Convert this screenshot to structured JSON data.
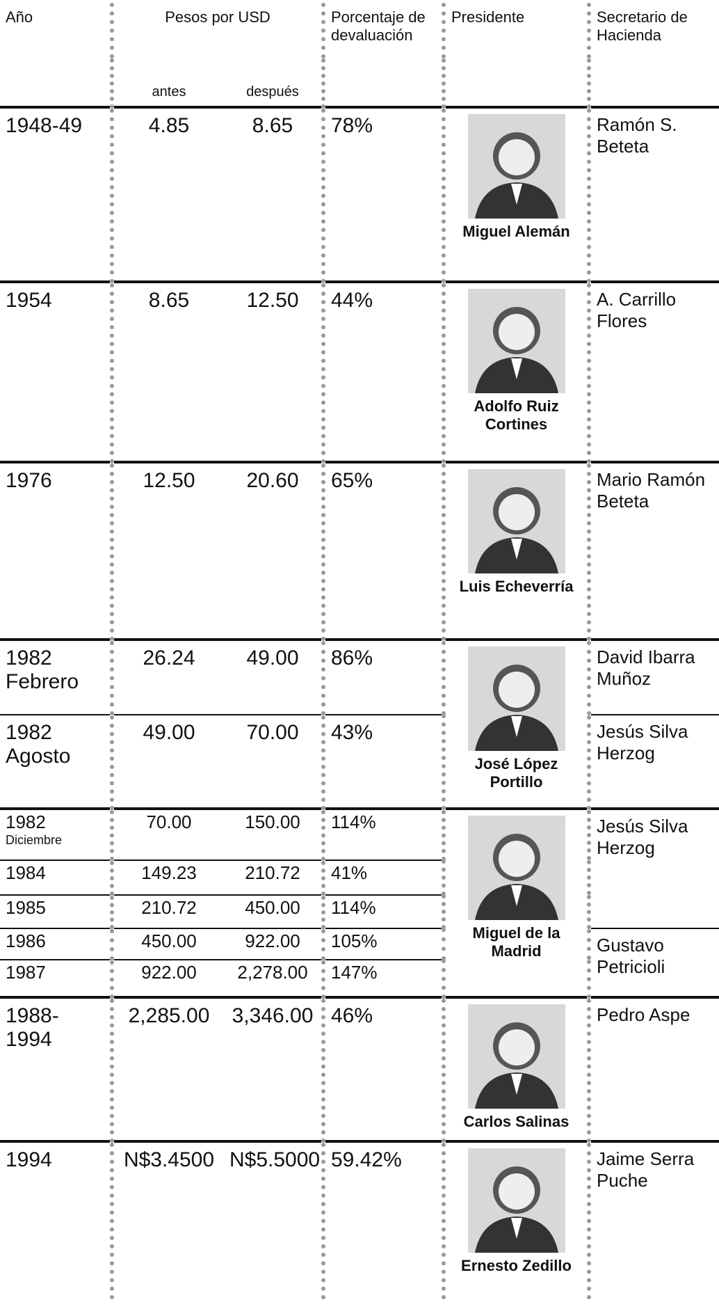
{
  "header": {
    "year": "Año",
    "pesos": "Pesos por USD",
    "before": "antes",
    "after": "después",
    "pct": "Porcentaje de devaluación",
    "president": "Presidente",
    "secretary": "Secretario de Hacienda"
  },
  "table": {
    "groups": [
      {
        "president": "Miguel Alemán",
        "secretaries": [
          {
            "name": "Ramón S. Beteta",
            "rows": [
              {
                "year": "1948-49",
                "before": "4.85",
                "after": "8.65",
                "pct": "78%"
              }
            ]
          }
        ]
      },
      {
        "president": "Adolfo Ruiz Cortines",
        "secretaries": [
          {
            "name": "A. Carrillo Flores",
            "rows": [
              {
                "year": "1954",
                "before": "8.65",
                "after": "12.50",
                "pct": "44%"
              }
            ]
          }
        ]
      },
      {
        "president": "Luis Echeverría",
        "secretaries": [
          {
            "name": "Mario Ramón Beteta",
            "rows": [
              {
                "year": "1976",
                "before": "12.50",
                "after": "20.60",
                "pct": "65%"
              }
            ]
          }
        ]
      },
      {
        "president": "José López Portillo",
        "secretaries": [
          {
            "name": "David Ibarra Muñoz",
            "rows": [
              {
                "year": "1982",
                "month": "Febrero",
                "before": "26.24",
                "after": "49.00",
                "pct": "86%"
              }
            ]
          },
          {
            "name": "Jesús Silva Herzog",
            "rows": [
              {
                "year": "1982",
                "month": "Agosto",
                "before": "49.00",
                "after": "70.00",
                "pct": "43%"
              }
            ]
          }
        ]
      },
      {
        "president": "Miguel de la Madrid",
        "secretaries": [
          {
            "name": "Jesús Silva Herzog",
            "rows": [
              {
                "year": "1982",
                "month": "Diciembre",
                "before": "70.00",
                "after": "150.00",
                "pct": "114%"
              },
              {
                "year": "1984",
                "before": "149.23",
                "after": "210.72",
                "pct": "41%"
              },
              {
                "year": "1985",
                "before": "210.72",
                "after": "450.00",
                "pct": "114%"
              }
            ]
          },
          {
            "name": "Gustavo Petricioli",
            "rows": [
              {
                "year": "1986",
                "before": "450.00",
                "after": "922.00",
                "pct": "105%"
              },
              {
                "year": "1987",
                "before": "922.00",
                "after": "2,278.00",
                "pct": "147%"
              }
            ]
          }
        ]
      },
      {
        "president": "Carlos Salinas",
        "secretaries": [
          {
            "name": "Pedro Aspe",
            "rows": [
              {
                "year": "1988-1994",
                "before": "2,285.00",
                "after": "3,346.00",
                "pct": "46%"
              }
            ]
          }
        ]
      },
      {
        "president": "Ernesto Zedillo",
        "secretaries": [
          {
            "name": "Jaime Serra Puche",
            "rows": [
              {
                "year": "1994",
                "before": "N$3.4500",
                "after": "N$5.5000",
                "pct": "59.42%"
              }
            ]
          }
        ]
      }
    ]
  }
}
